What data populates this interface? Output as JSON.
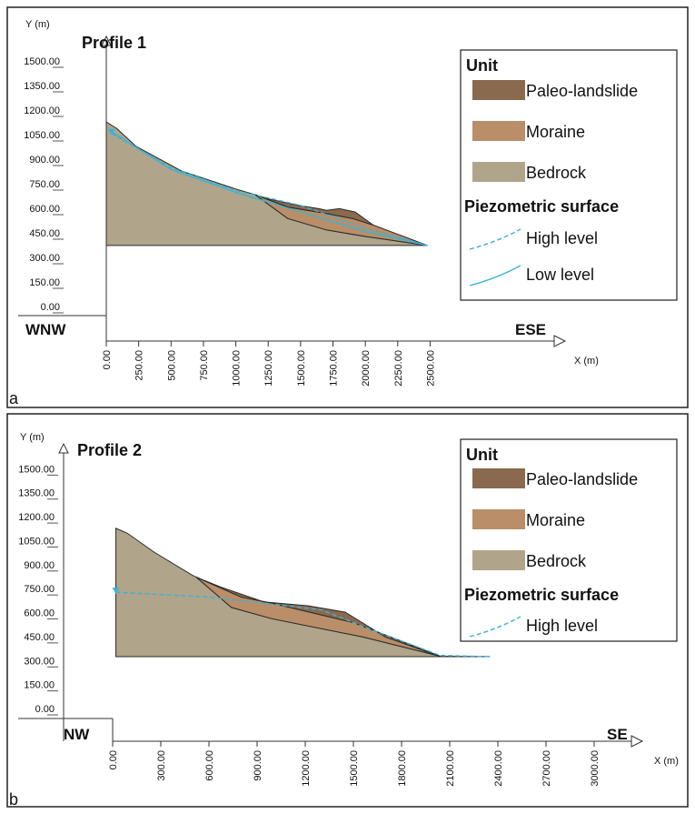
{
  "chart_data": [
    {
      "type": "profile",
      "panel_label": "a",
      "title": "Profile 1",
      "y_axis_label": "Y (m)",
      "x_axis_label": "X (m)",
      "left_label": "WNW",
      "right_label": "ESE",
      "xlim": [
        0,
        3500
      ],
      "ylim": [
        0,
        1650
      ],
      "xticks": [
        {
          "value": 0,
          "label": "0.00"
        },
        {
          "value": 250,
          "label": "250.00"
        },
        {
          "value": 500,
          "label": "500.00"
        },
        {
          "value": 750,
          "label": "750.00"
        },
        {
          "value": 1000,
          "label": "1000.00"
        },
        {
          "value": 1250,
          "label": "1250.00"
        },
        {
          "value": 1500,
          "label": "1500.00"
        },
        {
          "value": 1750,
          "label": "1750.00"
        },
        {
          "value": 2000,
          "label": "2000.00"
        },
        {
          "value": 2250,
          "label": "2250.00"
        },
        {
          "value": 2500,
          "label": "2500.00"
        }
      ],
      "yticks": [
        {
          "value": 0,
          "label": "0.00"
        },
        {
          "value": 150,
          "label": "150.00"
        },
        {
          "value": 300,
          "label": "300.00"
        },
        {
          "value": 450,
          "label": "450.00"
        },
        {
          "value": 600,
          "label": "600.00"
        },
        {
          "value": 750,
          "label": "750.00"
        },
        {
          "value": 900,
          "label": "900.00"
        },
        {
          "value": 1050,
          "label": "1050.00"
        },
        {
          "value": 1200,
          "label": "1200.00"
        },
        {
          "value": 1350,
          "label": "1350.00"
        },
        {
          "value": 1500,
          "label": "1500.00"
        }
      ],
      "units_title": "Unit",
      "series": [
        {
          "name": "Paleo-landslide",
          "color": "#8a6a4e",
          "x": [
            1150,
            1250,
            1480,
            1640,
            1700,
            1800,
            1920,
            2060,
            1900,
            1700,
            1400
          ],
          "values": [
            705,
            680,
            640,
            620,
            610,
            620,
            600,
            520,
            560,
            590,
            630
          ]
        },
        {
          "name": "Moraine",
          "color": "#b98e68",
          "x": [
            1150,
            1400,
            1700,
            2000,
            2480,
            2060,
            1900,
            1700,
            1400
          ],
          "values": [
            705,
            560,
            490,
            450,
            395,
            520,
            560,
            590,
            630
          ]
        },
        {
          "name": "Bedrock",
          "color": "#b0a48a",
          "x": [
            0,
            80,
            230,
            580,
            1000,
            1150,
            1400,
            1700,
            2000,
            2480,
            2480,
            0
          ],
          "values": [
            1150,
            1110,
            1000,
            850,
            740,
            705,
            560,
            490,
            450,
            395,
            395,
            395
          ]
        }
      ],
      "lines_title": "Piezometric surface",
      "lines": [
        {
          "name": "High level",
          "color": "#3bb3d6",
          "dashed": true,
          "x": [
            40,
            500,
            1000,
            1500,
            2000,
            2480
          ],
          "values": [
            1080,
            870,
            730,
            640,
            500,
            395
          ]
        },
        {
          "name": "Low level",
          "color": "#3bb3d6",
          "dashed": false,
          "x": [
            40,
            500,
            1000,
            1500,
            2000,
            2480
          ],
          "values": [
            1090,
            860,
            720,
            600,
            480,
            395
          ]
        }
      ]
    },
    {
      "type": "profile",
      "panel_label": "b",
      "title": "Profile 2",
      "y_axis_label": "Y (m)",
      "x_axis_label": "X (m)",
      "left_label": "NW",
      "right_label": "SE",
      "xlim": [
        0,
        3300
      ],
      "ylim": [
        0,
        1650
      ],
      "xticks": [
        {
          "value": 0,
          "label": "0.00"
        },
        {
          "value": 300,
          "label": "300.00"
        },
        {
          "value": 600,
          "label": "600.00"
        },
        {
          "value": 900,
          "label": "900.00"
        },
        {
          "value": 1200,
          "label": "1200.00"
        },
        {
          "value": 1500,
          "label": "1500.00"
        },
        {
          "value": 1800,
          "label": "1800.00"
        },
        {
          "value": 2100,
          "label": "2100.00"
        },
        {
          "value": 2400,
          "label": "2400.00"
        },
        {
          "value": 2700,
          "label": "2700.00"
        },
        {
          "value": 3000,
          "label": "3000.00"
        }
      ],
      "yticks": [
        {
          "value": 0,
          "label": "0.00"
        },
        {
          "value": 150,
          "label": "150.00"
        },
        {
          "value": 300,
          "label": "300.00"
        },
        {
          "value": 450,
          "label": "450.00"
        },
        {
          "value": 600,
          "label": "600.00"
        },
        {
          "value": 750,
          "label": "750.00"
        },
        {
          "value": 900,
          "label": "900.00"
        },
        {
          "value": 1050,
          "label": "1050.00"
        },
        {
          "value": 1200,
          "label": "1200.00"
        },
        {
          "value": 1350,
          "label": "1350.00"
        },
        {
          "value": 1500,
          "label": "1500.00"
        }
      ],
      "units_title": "Unit",
      "series": [
        {
          "name": "Paleo-landslide",
          "color": "#8a6a4e",
          "x": [
            520,
            680,
            940,
            1220,
            1450,
            1700,
            1980,
            2040,
            1500,
            1000,
            800
          ],
          "values": [
            845,
            780,
            690,
            665,
            625,
            470,
            370,
            350,
            560,
            680,
            720
          ]
        },
        {
          "name": "Moraine",
          "color": "#b98e68",
          "x": [
            520,
            740,
            990,
            1560,
            2040,
            1500,
            1000,
            800
          ],
          "values": [
            845,
            655,
            585,
            470,
            350,
            560,
            680,
            720
          ]
        },
        {
          "name": "Bedrock",
          "color": "#b0a48a",
          "x": [
            20,
            90,
            260,
            490,
            520,
            740,
            990,
            1560,
            2040,
            2350,
            2350,
            20
          ],
          "values": [
            1150,
            1120,
            1000,
            860,
            845,
            655,
            585,
            470,
            350,
            347,
            347,
            347
          ]
        }
      ],
      "lines_title": "Piezometric surface",
      "lines": [
        {
          "name": "High level",
          "color": "#3bb3d6",
          "dashed": true,
          "x": [
            20,
            600,
            1300,
            1600,
            2040,
            2350
          ],
          "values": [
            750,
            720,
            640,
            520,
            355,
            347
          ]
        }
      ]
    }
  ]
}
